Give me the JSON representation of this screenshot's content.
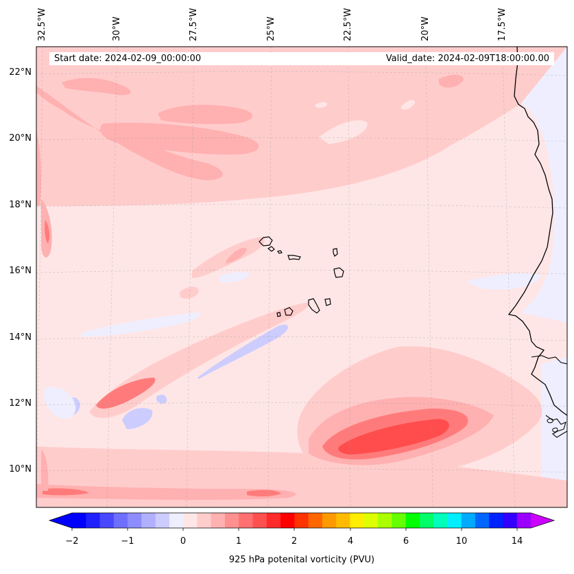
{
  "header": {
    "start_date": "Start date: 2024-02-09_00:00:00",
    "valid_date": "Valid_date: 2024-02-09T18:00:00.00"
  },
  "map": {
    "longitude_labels": [
      "32.5°W",
      "30°W",
      "27.5°W",
      "25°W",
      "22.5°W",
      "20°W",
      "17.5°W"
    ],
    "latitude_labels": [
      "22°N",
      "20°N",
      "18°N",
      "16°N",
      "14°N",
      "12°N",
      "10°N"
    ],
    "gridlines": "dashed light grey",
    "colors": {
      "background_field": "#ffe6e6",
      "light_positive": "#ffcccc",
      "medium_positive": "#ffb0b0",
      "strong_positive": "#ff7b7b",
      "peak_positive": "#ff4d4d",
      "light_negative": "#eeeeff",
      "medium_negative": "#ccccff",
      "coastline": "#000000"
    }
  },
  "colorbar": {
    "title": "925 hPa potenital vorticity (PVU)",
    "tick_labels": [
      "−2",
      "−1",
      "0",
      "1",
      "2",
      "4",
      "6",
      "10",
      "14"
    ],
    "colors": [
      "#0000ff",
      "#2020ff",
      "#4848ff",
      "#6f6fff",
      "#8d8dff",
      "#b0b0ff",
      "#ccccff",
      "#eeeeff",
      "#ffe6e6",
      "#ffcccc",
      "#ffb0b0",
      "#ff9090",
      "#ff7070",
      "#ff5050",
      "#ff2a2a",
      "#ff0000",
      "#ff3300",
      "#ff6600",
      "#ff9900",
      "#ffbb00",
      "#ffee00",
      "#ddff00",
      "#aaff00",
      "#66ff00",
      "#00ff00",
      "#00ff66",
      "#00ffbb",
      "#00eeff",
      "#00aaff",
      "#0066ff",
      "#0022ff",
      "#3300ff",
      "#9900ff"
    ],
    "extend_low_color": "#0000ff",
    "extend_high_color": "#cc00ff"
  }
}
